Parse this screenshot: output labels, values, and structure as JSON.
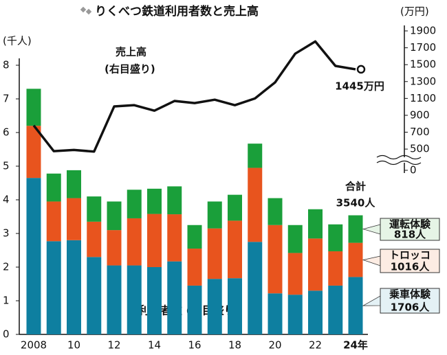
{
  "chart_data": {
    "type": "bar",
    "stacked": true,
    "title": "りくべつ鉄道利用者数と売上高",
    "y_unit": "(千人)",
    "y2_unit": "(万円)",
    "bar_annotation": "利用者数 (左目盛り)",
    "line_annotation": "売上高",
    "line_annotation_sub": "(右目盛り)",
    "total_title": "合計",
    "total_label": "3540人",
    "total_value": 3.54,
    "categories": [
      "2008",
      null,
      "10",
      null,
      "12",
      null,
      "14",
      null,
      "16",
      null,
      "18",
      null,
      "20",
      null,
      "22",
      null,
      "24年"
    ],
    "ylim": [
      0,
      8
    ],
    "yticks": [
      0,
      1,
      2,
      3,
      4,
      5,
      6,
      7,
      8
    ],
    "y2lim": [
      400,
      1900
    ],
    "y2ticks": [
      0,
      500,
      700,
      900,
      1100,
      1300,
      1500,
      1700,
      1900
    ],
    "y2_break": true,
    "series": [
      {
        "name": "乗車体験",
        "color": "#0e7fa0",
        "values": [
          4.65,
          2.77,
          2.8,
          2.3,
          2.05,
          2.05,
          2.0,
          2.17,
          1.45,
          1.65,
          1.67,
          2.75,
          1.22,
          1.18,
          1.3,
          1.45,
          1.706
        ],
        "value_labels": [
          null,
          null,
          null,
          null,
          null,
          null,
          null,
          null,
          null,
          null,
          null,
          null,
          null,
          null,
          null,
          null,
          "1706人"
        ],
        "box_color": "#e4f1f5"
      },
      {
        "name": "トロッコ",
        "color": "#e8541e",
        "values": [
          1.55,
          1.18,
          1.25,
          1.05,
          1.05,
          1.4,
          1.58,
          1.4,
          1.1,
          1.5,
          1.71,
          2.2,
          2.03,
          1.24,
          1.55,
          1.02,
          1.016
        ],
        "value_labels": [
          null,
          null,
          null,
          null,
          null,
          null,
          null,
          null,
          null,
          null,
          null,
          null,
          null,
          null,
          null,
          null,
          "1016人"
        ],
        "box_color": "#fcece3"
      },
      {
        "name": "運転体験",
        "color": "#1a9f3a",
        "values": [
          1.1,
          0.83,
          0.83,
          0.75,
          0.85,
          0.85,
          0.75,
          0.83,
          0.7,
          0.8,
          0.77,
          0.72,
          0.8,
          0.83,
          0.87,
          0.8,
          0.818
        ],
        "value_labels": [
          null,
          null,
          null,
          null,
          null,
          null,
          null,
          null,
          null,
          null,
          null,
          null,
          null,
          null,
          null,
          null,
          "818人"
        ],
        "box_color": "#e6f4e6"
      },
      {
        "type": "line",
        "axis": "y2",
        "color": "#111111",
        "values": [
          780,
          475,
          490,
          470,
          1005,
          1020,
          955,
          1070,
          1045,
          1085,
          1020,
          1100,
          1290,
          1630,
          1775,
          1485,
          1445
        ],
        "value_labels": [
          null,
          null,
          null,
          null,
          null,
          null,
          null,
          null,
          null,
          null,
          null,
          null,
          null,
          null,
          null,
          null,
          "1445万円"
        ]
      }
    ]
  }
}
